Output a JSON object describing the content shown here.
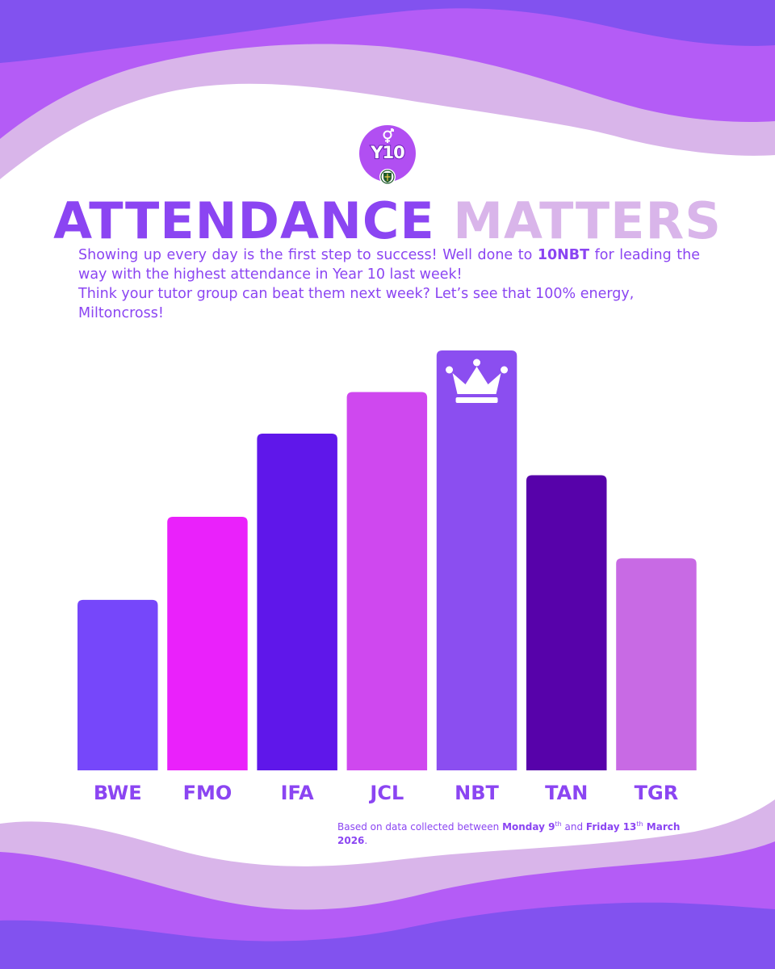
{
  "badge": {
    "label": "Y10",
    "icons": [
      "gender-symbol-icon",
      "school-crest-icon"
    ]
  },
  "title": {
    "part1": "ATTENDANCE",
    "part2": "MATTERS"
  },
  "intro": {
    "line1_before": "Showing up every day is the first step to success! Well done to ",
    "line1_highlight": "10NBT",
    "line1_after": " for leading the way with the highest attendance in Year 10 last week!",
    "line2": "Think your tutor group can beat them next week? Let’s see that 100% energy, Miltoncross!"
  },
  "chart_data": {
    "type": "bar",
    "title": "",
    "xlabel": "",
    "ylabel": "",
    "categories": [
      "BWE",
      "FMO",
      "IFA",
      "JCL",
      "NBT",
      "TAN",
      "TGR"
    ],
    "values": [
      41,
      61,
      81,
      91,
      101,
      71,
      51
    ],
    "colors": [
      "#7647fa",
      "#ea21fb",
      "#5f17ea",
      "#cf48ef",
      "#8b4ef0",
      "#5702aa",
      "#c86ae4"
    ],
    "ylim": [
      0,
      101
    ],
    "value_unit": "relative bar height (no axis shown)",
    "highlight": "NBT",
    "highlight_icon": "crown-icon",
    "grid": false,
    "legend": "none"
  },
  "footnote": {
    "prefix": "Based on data collected between ",
    "start_day": "Monday 9",
    "start_sup": "th",
    "middle": " and ",
    "end_day": "Friday 13",
    "end_sup": "th",
    "end_rest": " March 2026",
    "suffix": "."
  },
  "colors": {
    "primary": "#8b45f2",
    "light": "#d9b5ea",
    "wave_dark": "#8252ef",
    "wave_mid": "#b45cf6"
  }
}
